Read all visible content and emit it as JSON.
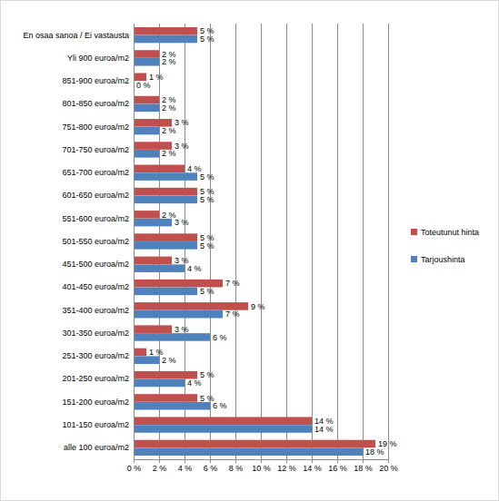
{
  "chart_data": {
    "type": "bar",
    "orientation": "horizontal",
    "categories": [
      "En osaa sanoa / Ei vastausta",
      "Yli 900 euroa/m2",
      "851-900 euroa/m2",
      "801-850 euroa/m2",
      "751-800 euroa/m2",
      "701-750 euroa/m2",
      "651-700 euroa/m2",
      "601-650 euroa/m2",
      "551-600 euroa/m2",
      "501-550 euroa/m2",
      "451-500 euroa/m2",
      "401-450 euroa/m2",
      "351-400 euroa/m2",
      "301-350 euroa/m2",
      "251-300 euroa/m2",
      "201-250 euroa/m2",
      "151-200 euroa/m2",
      "101-150 euroa/m2",
      "alle 100 euroa/m2"
    ],
    "series": [
      {
        "name": "Toteutunut hinta",
        "color": "#c0504d",
        "values": [
          5,
          2,
          1,
          2,
          3,
          3,
          4,
          5,
          2,
          5,
          3,
          7,
          9,
          3,
          1,
          5,
          5,
          14,
          19
        ],
        "value_labels": [
          "5 %",
          "2 %",
          "1 %",
          "2 %",
          "3 %",
          "3 %",
          "4 %",
          "5 %",
          "2 %",
          "5 %",
          "3 %",
          "7 %",
          "9 %",
          "3 %",
          "1 %",
          "5 %",
          "5 %",
          "14 %",
          "19 %"
        ]
      },
      {
        "name": "Tarjoushinta",
        "color": "#4f81bd",
        "values": [
          5,
          2,
          0,
          2,
          2,
          2,
          5,
          5,
          3,
          5,
          4,
          5,
          7,
          6,
          2,
          4,
          6,
          14,
          18
        ],
        "value_labels": [
          "5 %",
          "2 %",
          "0 %",
          "2 %",
          "2 %",
          "2 %",
          "5 %",
          "5 %",
          "3 %",
          "5 %",
          "4 %",
          "5 %",
          "7 %",
          "6 %",
          "2 %",
          "4 %",
          "6 %",
          "14 %",
          "18 %"
        ]
      }
    ],
    "xlim": [
      0,
      20
    ],
    "xticks": [
      {
        "value": 0,
        "label": "0 %"
      },
      {
        "value": 2,
        "label": "2 %"
      },
      {
        "value": 4,
        "label": "4 %"
      },
      {
        "value": 6,
        "label": "6 %"
      },
      {
        "value": 8,
        "label": "8 %"
      },
      {
        "value": 10,
        "label": "10 %"
      },
      {
        "value": 12,
        "label": "12 %"
      },
      {
        "value": 14,
        "label": "14 %"
      },
      {
        "value": 16,
        "label": "16 %"
      },
      {
        "value": 18,
        "label": "18 %"
      },
      {
        "value": 20,
        "label": "20 %"
      }
    ],
    "grid": true,
    "legend": "right",
    "data_labels": true
  }
}
